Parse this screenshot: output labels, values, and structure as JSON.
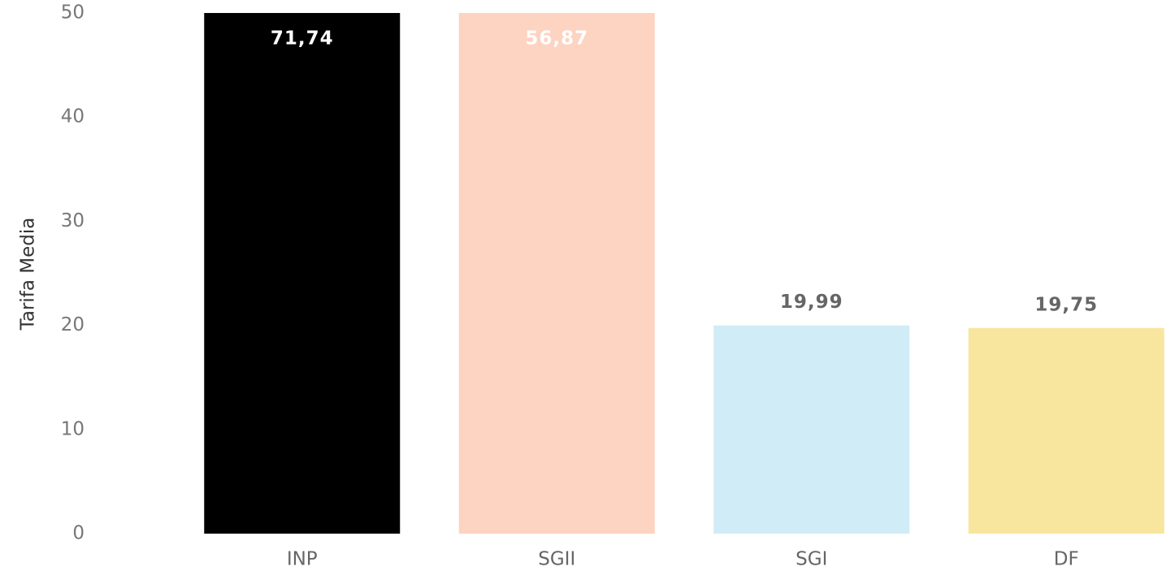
{
  "chart_data": {
    "type": "bar",
    "y_axis_label": "Tarifa Media",
    "categories": [
      "INP",
      "SGII",
      "SGI",
      "DF"
    ],
    "values": [
      71.74,
      56.87,
      19.99,
      19.75
    ],
    "value_labels": [
      "71,74",
      "56,87",
      "19,99",
      "19,75"
    ],
    "colors": [
      "#000000",
      "#fdd3c1",
      "#d0ecf6",
      "#f8e69e"
    ],
    "ylim": [
      0,
      50
    ],
    "yticks": [
      0,
      10,
      20,
      30,
      40,
      50
    ],
    "grid": false
  }
}
